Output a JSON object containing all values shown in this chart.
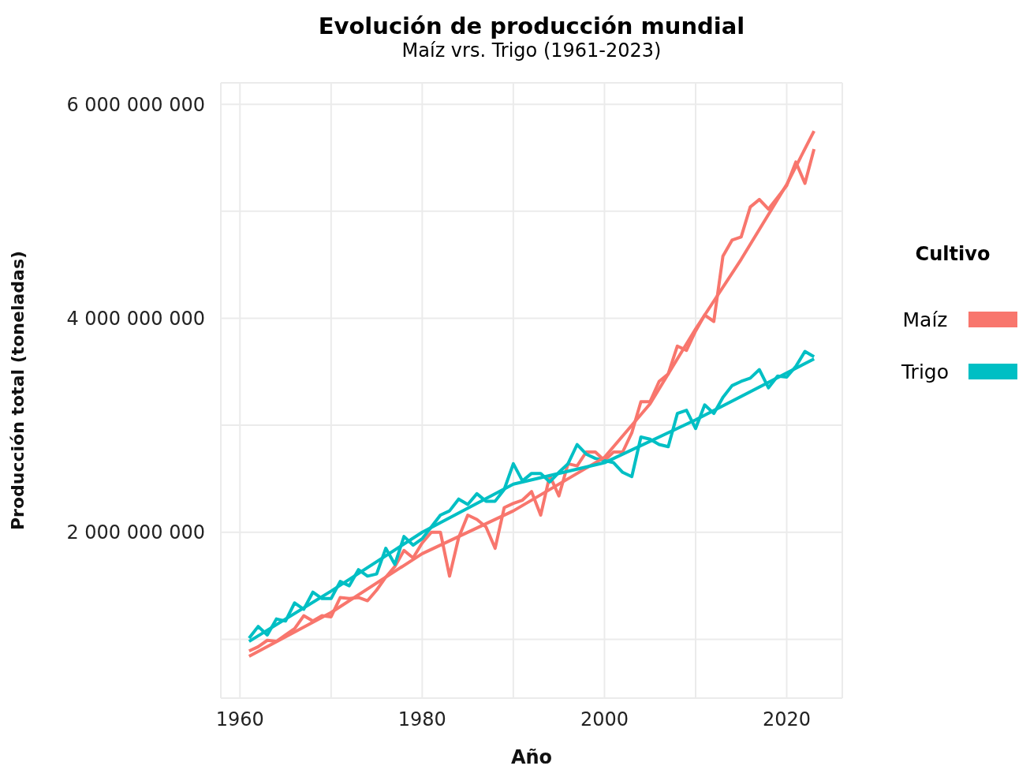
{
  "chart_data": {
    "type": "line",
    "title": "Evolución de producción mundial",
    "subtitle": "Maíz vrs. Trigo (1961-2023)",
    "xlabel": "Año",
    "ylabel": "Producción total (toneladas)",
    "legend_title": "Cultivo",
    "legend": "right",
    "grid": true,
    "x": [
      1961,
      1962,
      1963,
      1964,
      1965,
      1966,
      1967,
      1968,
      1969,
      1970,
      1971,
      1972,
      1973,
      1974,
      1975,
      1976,
      1977,
      1978,
      1979,
      1980,
      1981,
      1982,
      1983,
      1984,
      1985,
      1986,
      1987,
      1988,
      1989,
      1990,
      1991,
      1992,
      1993,
      1994,
      1995,
      1996,
      1997,
      1998,
      1999,
      2000,
      2001,
      2002,
      2003,
      2004,
      2005,
      2006,
      2007,
      2008,
      2009,
      2010,
      2011,
      2012,
      2013,
      2014,
      2015,
      2016,
      2017,
      2018,
      2019,
      2020,
      2021,
      2022,
      2023
    ],
    "xlim": [
      1957.9,
      2026.1
    ],
    "xticks": [
      1960,
      {
        "value": 1970,
        "label": null
      },
      1980,
      {
        "value": 1990,
        "label": null
      },
      2000,
      {
        "value": 2010,
        "label": null
      },
      2020
    ],
    "ylim": [
      450000000,
      6200000000
    ],
    "yticks": [
      {
        "value": 1000000000,
        "label": null
      },
      {
        "value": 2000000000,
        "label": "2 000 000 000"
      },
      {
        "value": 3000000000,
        "label": null
      },
      {
        "value": 4000000000,
        "label": "4 000 000 000"
      },
      {
        "value": 5000000000,
        "label": null
      },
      {
        "value": 6000000000,
        "label": "6 000 000 000"
      }
    ],
    "series": [
      {
        "name": "Maíz",
        "color": "#f8766d",
        "values": [
          890000000,
          930000000,
          990000000,
          980000000,
          1040000000,
          1100000000,
          1220000000,
          1170000000,
          1220000000,
          1210000000,
          1390000000,
          1380000000,
          1390000000,
          1360000000,
          1460000000,
          1580000000,
          1680000000,
          1830000000,
          1760000000,
          1900000000,
          2000000000,
          2000000000,
          1590000000,
          1950000000,
          2160000000,
          2120000000,
          2050000000,
          1850000000,
          2230000000,
          2270000000,
          2300000000,
          2380000000,
          2160000000,
          2530000000,
          2340000000,
          2640000000,
          2620000000,
          2750000000,
          2750000000,
          2670000000,
          2750000000,
          2750000000,
          2930000000,
          3220000000,
          3220000000,
          3410000000,
          3480000000,
          3740000000,
          3700000000,
          3880000000,
          4030000000,
          3970000000,
          4580000000,
          4730000000,
          4760000000,
          5040000000,
          5110000000,
          5020000000,
          5130000000,
          5240000000,
          5460000000,
          5260000000,
          5580000000
        ]
      },
      {
        "name": "Trigo",
        "color": "#00bfc4",
        "values": [
          1010000000,
          1120000000,
          1040000000,
          1190000000,
          1170000000,
          1340000000,
          1280000000,
          1440000000,
          1380000000,
          1380000000,
          1540000000,
          1500000000,
          1650000000,
          1590000000,
          1610000000,
          1850000000,
          1700000000,
          1960000000,
          1880000000,
          1940000000,
          2050000000,
          2160000000,
          2200000000,
          2310000000,
          2260000000,
          2360000000,
          2290000000,
          2290000000,
          2400000000,
          2640000000,
          2480000000,
          2550000000,
          2550000000,
          2470000000,
          2560000000,
          2640000000,
          2820000000,
          2730000000,
          2690000000,
          2670000000,
          2650000000,
          2560000000,
          2520000000,
          2890000000,
          2870000000,
          2820000000,
          2800000000,
          3110000000,
          3140000000,
          2970000000,
          3190000000,
          3110000000,
          3260000000,
          3370000000,
          3410000000,
          3440000000,
          3520000000,
          3350000000,
          3460000000,
          3450000000,
          3550000000,
          3690000000,
          3640000000
        ]
      },
      {
        "type": "line",
        "color": "#f8766d",
        "x": [
          1961,
          1970,
          1980,
          1990,
          2000,
          2005,
          2010,
          2015,
          2020,
          2023
        ],
        "values": [
          840000000,
          1250000000,
          1800000000,
          2200000000,
          2700000000,
          3200000000,
          3900000000,
          4550000000,
          5250000000,
          5750000000
        ]
      },
      {
        "type": "line",
        "color": "#00bfc4",
        "x": [
          1961,
          1970,
          1980,
          1990,
          2000,
          2010,
          2023
        ],
        "values": [
          980000000,
          1450000000,
          2000000000,
          2450000000,
          2650000000,
          3050000000,
          3620000000
        ]
      }
    ]
  }
}
